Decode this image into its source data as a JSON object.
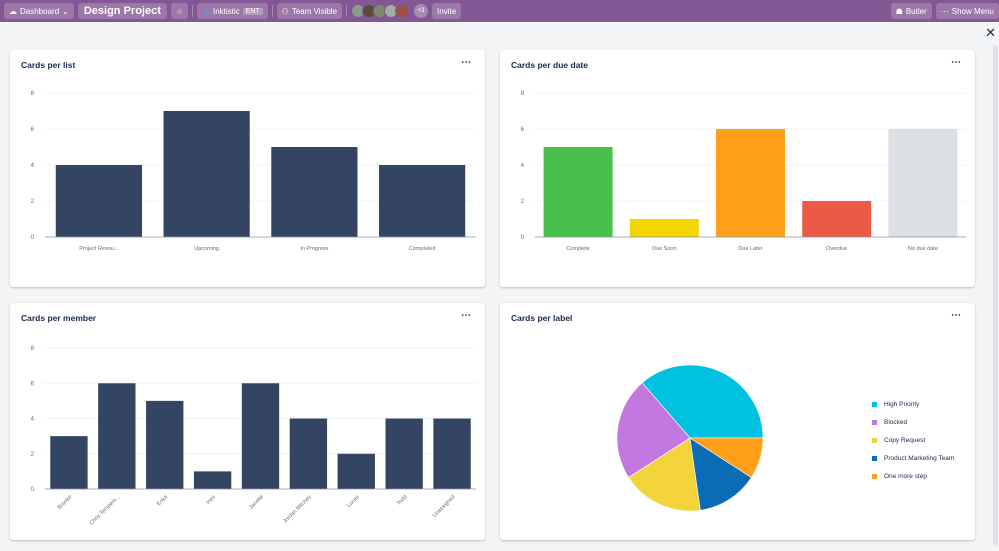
{
  "header": {
    "dashboard": "Dashboard",
    "board_title": "Design Project",
    "workspace": "Inktistic",
    "workspace_badge": "ENT",
    "visibility": "Team Visible",
    "members_more": "+3",
    "invite": "Invite",
    "butler": "Butler",
    "show_menu": "Show Menu",
    "avatar_colors": [
      "#8a9a8c",
      "#5b4a3a",
      "#7d8b6a",
      "#9fb0a0",
      "#a05040"
    ]
  },
  "chart_data": [
    {
      "type": "bar",
      "title": "Cards per list",
      "categories": [
        "Project Resou...",
        "Upcoming",
        "In Progress",
        "Completed"
      ],
      "values": [
        4,
        7,
        5,
        4
      ],
      "colors": [
        "#344563",
        "#344563",
        "#344563",
        "#344563"
      ],
      "ylim": [
        0,
        8
      ],
      "yticks": [
        0,
        2,
        4,
        6,
        8
      ],
      "grid": true
    },
    {
      "type": "bar",
      "title": "Cards per due date",
      "categories": [
        "Complete",
        "Due Soon",
        "Due Later",
        "Overdue",
        "No due date"
      ],
      "values": [
        5,
        1,
        6,
        2,
        6
      ],
      "colors": [
        "#4bbf4b",
        "#f2d600",
        "#ff9f1a",
        "#eb5a46",
        "#dcdfe4"
      ],
      "ylim": [
        0,
        8
      ],
      "yticks": [
        0,
        2,
        4,
        6,
        8
      ],
      "grid": true
    },
    {
      "type": "bar",
      "title": "Cards per member",
      "categories": [
        "Brooke",
        "Chris Tempers...",
        "Erika",
        "Ines",
        "Janelle",
        "Jordan Mitchey",
        "Lucas",
        "Todd",
        "Unassigned"
      ],
      "values": [
        3,
        6,
        5,
        1,
        6,
        4,
        2,
        4,
        4
      ],
      "colors": [
        "#344563",
        "#344563",
        "#344563",
        "#344563",
        "#344563",
        "#344563",
        "#344563",
        "#344563",
        "#344563"
      ],
      "ylim": [
        0,
        8
      ],
      "yticks": [
        0,
        2,
        4,
        6,
        8
      ],
      "grid": true,
      "rotated_labels": true
    },
    {
      "type": "pie",
      "title": "Cards per label",
      "categories": [
        "High Priority",
        "Blocked",
        "Copy Request",
        "Product Marketing Team",
        "One more step"
      ],
      "values": [
        8,
        5,
        4,
        3,
        2
      ],
      "colors": [
        "#00c2e0",
        "#c377e0",
        "#f2d33a",
        "#0b6cb5",
        "#ff9f1a"
      ],
      "legend": "right"
    }
  ],
  "menu_label": "⋯"
}
